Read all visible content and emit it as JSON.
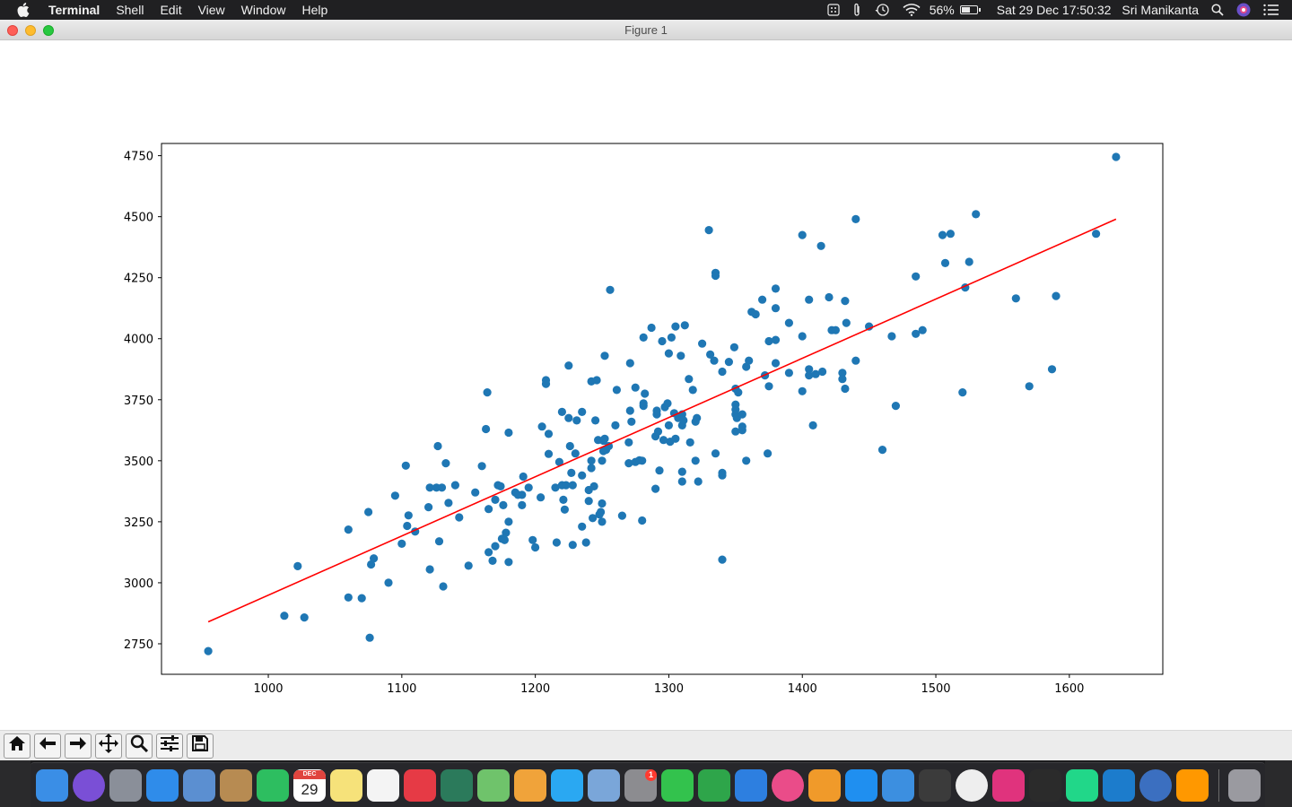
{
  "menubar": {
    "app_name": "Terminal",
    "items": [
      "Shell",
      "Edit",
      "View",
      "Window",
      "Help"
    ],
    "battery": "56%",
    "datetime": "Sat 29 Dec  17:50:32",
    "user": "Sri Manikanta"
  },
  "window": {
    "title": "Figure 1"
  },
  "chart_data": {
    "type": "scatter",
    "title": "",
    "xlabel": "",
    "ylabel": "",
    "xlim": [
      920,
      1670
    ],
    "ylim": [
      2625,
      4800
    ],
    "xticks": [
      1000,
      1100,
      1200,
      1300,
      1400,
      1500,
      1600
    ],
    "yticks": [
      2750,
      3000,
      3250,
      3500,
      3750,
      4000,
      4250,
      4500,
      4750
    ],
    "grid": false,
    "colors": {
      "points": "#1f77b4",
      "line": "#ff0000"
    },
    "series": [
      {
        "kind": "scatter",
        "points": [
          [
            955,
            2720
          ],
          [
            1012,
            2865
          ],
          [
            1022,
            3068
          ],
          [
            1027,
            2858
          ],
          [
            1060,
            3218
          ],
          [
            1060,
            2940
          ],
          [
            1070,
            2937
          ],
          [
            1075,
            3290
          ],
          [
            1076,
            2775
          ],
          [
            1077,
            3075
          ],
          [
            1079,
            3100
          ],
          [
            1090,
            3000
          ],
          [
            1095,
            3357
          ],
          [
            1100,
            3160
          ],
          [
            1103,
            3480
          ],
          [
            1104,
            3233
          ],
          [
            1105,
            3276
          ],
          [
            1110,
            3210
          ],
          [
            1120,
            3310
          ],
          [
            1121,
            3390
          ],
          [
            1121,
            3055
          ],
          [
            1126,
            3390
          ],
          [
            1127,
            3560
          ],
          [
            1128,
            3170
          ],
          [
            1130,
            3390
          ],
          [
            1131,
            2985
          ],
          [
            1133,
            3490
          ],
          [
            1135,
            3327
          ],
          [
            1140,
            3400
          ],
          [
            1143,
            3268
          ],
          [
            1150,
            3070
          ],
          [
            1155,
            3370
          ],
          [
            1160,
            3478
          ],
          [
            1163,
            3630
          ],
          [
            1164,
            3780
          ],
          [
            1165,
            3302
          ],
          [
            1165,
            3125
          ],
          [
            1168,
            3090
          ],
          [
            1170,
            3340
          ],
          [
            1170,
            3150
          ],
          [
            1172,
            3400
          ],
          [
            1174,
            3395
          ],
          [
            1175,
            3180
          ],
          [
            1176,
            3318
          ],
          [
            1177,
            3175
          ],
          [
            1178,
            3205
          ],
          [
            1180,
            3250
          ],
          [
            1180,
            3615
          ],
          [
            1180,
            3085
          ],
          [
            1185,
            3370
          ],
          [
            1187,
            3360
          ],
          [
            1190,
            3360
          ],
          [
            1190,
            3318
          ],
          [
            1191,
            3435
          ],
          [
            1195,
            3390
          ],
          [
            1198,
            3175
          ],
          [
            1200,
            3145
          ],
          [
            1204,
            3350
          ],
          [
            1205,
            3640
          ],
          [
            1208,
            3815
          ],
          [
            1208,
            3830
          ],
          [
            1210,
            3610
          ],
          [
            1210,
            3528
          ],
          [
            1215,
            3390
          ],
          [
            1216,
            3165
          ],
          [
            1218,
            3495
          ],
          [
            1220,
            3700
          ],
          [
            1220,
            3400
          ],
          [
            1221,
            3340
          ],
          [
            1222,
            3300
          ],
          [
            1223,
            3400
          ],
          [
            1225,
            3675
          ],
          [
            1225,
            3890
          ],
          [
            1226,
            3560
          ],
          [
            1227,
            3450
          ],
          [
            1228,
            3400
          ],
          [
            1228,
            3155
          ],
          [
            1230,
            3530
          ],
          [
            1231,
            3665
          ],
          [
            1235,
            3230
          ],
          [
            1235,
            3440
          ],
          [
            1235,
            3700
          ],
          [
            1238,
            3165
          ],
          [
            1240,
            3380
          ],
          [
            1240,
            3335
          ],
          [
            1242,
            3500
          ],
          [
            1242,
            3825
          ],
          [
            1242,
            3470
          ],
          [
            1243,
            3265
          ],
          [
            1244,
            3395
          ],
          [
            1245,
            3665
          ],
          [
            1246,
            3830
          ],
          [
            1247,
            3585
          ],
          [
            1248,
            3280
          ],
          [
            1249,
            3290
          ],
          [
            1250,
            3325
          ],
          [
            1250,
            3500
          ],
          [
            1250,
            3250
          ],
          [
            1251,
            3540
          ],
          [
            1251,
            3582
          ],
          [
            1252,
            3590
          ],
          [
            1252,
            3930
          ],
          [
            1253,
            3545
          ],
          [
            1255,
            3560
          ],
          [
            1256,
            4200
          ],
          [
            1260,
            3645
          ],
          [
            1261,
            3790
          ],
          [
            1265,
            3275
          ],
          [
            1270,
            3490
          ],
          [
            1270,
            3575
          ],
          [
            1271,
            3900
          ],
          [
            1271,
            3705
          ],
          [
            1272,
            3660
          ],
          [
            1275,
            3495
          ],
          [
            1275,
            3800
          ],
          [
            1278,
            3502
          ],
          [
            1280,
            3255
          ],
          [
            1280,
            3500
          ],
          [
            1281,
            4005
          ],
          [
            1281,
            3725
          ],
          [
            1281,
            3735
          ],
          [
            1282,
            3775
          ],
          [
            1287,
            4045
          ],
          [
            1290,
            3600
          ],
          [
            1290,
            3385
          ],
          [
            1291,
            3690
          ],
          [
            1291,
            3705
          ],
          [
            1292,
            3620
          ],
          [
            1293,
            3460
          ],
          [
            1295,
            3990
          ],
          [
            1296,
            3585
          ],
          [
            1297,
            3720
          ],
          [
            1299,
            3735
          ],
          [
            1300,
            3940
          ],
          [
            1300,
            3645
          ],
          [
            1301,
            3578
          ],
          [
            1302,
            4005
          ],
          [
            1304,
            3695
          ],
          [
            1305,
            4050
          ],
          [
            1305,
            3590
          ],
          [
            1307,
            3675
          ],
          [
            1309,
            3930
          ],
          [
            1310,
            3645
          ],
          [
            1310,
            3455
          ],
          [
            1310,
            3415
          ],
          [
            1310,
            3690
          ],
          [
            1311,
            3665
          ],
          [
            1312,
            4055
          ],
          [
            1315,
            3835
          ],
          [
            1316,
            3575
          ],
          [
            1318,
            3790
          ],
          [
            1320,
            3660
          ],
          [
            1320,
            3500
          ],
          [
            1321,
            3675
          ],
          [
            1322,
            3415
          ],
          [
            1325,
            3980
          ],
          [
            1330,
            4445
          ],
          [
            1331,
            3935
          ],
          [
            1334,
            3910
          ],
          [
            1335,
            4270
          ],
          [
            1335,
            4258
          ],
          [
            1335,
            3530
          ],
          [
            1340,
            3450
          ],
          [
            1340,
            3440
          ],
          [
            1340,
            3865
          ],
          [
            1340,
            3095
          ],
          [
            1345,
            3905
          ],
          [
            1349,
            3965
          ],
          [
            1350,
            3795
          ],
          [
            1350,
            3730
          ],
          [
            1350,
            3710
          ],
          [
            1350,
            3620
          ],
          [
            1350,
            3690
          ],
          [
            1351,
            3675
          ],
          [
            1352,
            3780
          ],
          [
            1355,
            3625
          ],
          [
            1355,
            3640
          ],
          [
            1355,
            3690
          ],
          [
            1358,
            3885
          ],
          [
            1358,
            3500
          ],
          [
            1360,
            3910
          ],
          [
            1362,
            4110
          ],
          [
            1365,
            4100
          ],
          [
            1370,
            4160
          ],
          [
            1372,
            3850
          ],
          [
            1374,
            3530
          ],
          [
            1375,
            3805
          ],
          [
            1375,
            3990
          ],
          [
            1380,
            4205
          ],
          [
            1380,
            4125
          ],
          [
            1380,
            3995
          ],
          [
            1380,
            3900
          ],
          [
            1390,
            4065
          ],
          [
            1390,
            3860
          ],
          [
            1400,
            4425
          ],
          [
            1400,
            3785
          ],
          [
            1400,
            4010
          ],
          [
            1405,
            4160
          ],
          [
            1405,
            3875
          ],
          [
            1405,
            3850
          ],
          [
            1408,
            3645
          ],
          [
            1410,
            3855
          ],
          [
            1414,
            4380
          ],
          [
            1415,
            3865
          ],
          [
            1420,
            4170
          ],
          [
            1422,
            4035
          ],
          [
            1425,
            4035
          ],
          [
            1430,
            3860
          ],
          [
            1430,
            3835
          ],
          [
            1432,
            4155
          ],
          [
            1432,
            3795
          ],
          [
            1433,
            4065
          ],
          [
            1440,
            4490
          ],
          [
            1440,
            3910
          ],
          [
            1450,
            4050
          ],
          [
            1460,
            3545
          ],
          [
            1467,
            4010
          ],
          [
            1470,
            3725
          ],
          [
            1485,
            4255
          ],
          [
            1485,
            4020
          ],
          [
            1490,
            4035
          ],
          [
            1505,
            4425
          ],
          [
            1507,
            4310
          ],
          [
            1511,
            4430
          ],
          [
            1520,
            3780
          ],
          [
            1522,
            4210
          ],
          [
            1525,
            4315
          ],
          [
            1530,
            4510
          ],
          [
            1560,
            4165
          ],
          [
            1570,
            3805
          ],
          [
            1587,
            3875
          ],
          [
            1590,
            4175
          ],
          [
            1620,
            4430
          ],
          [
            1635,
            4745
          ]
        ]
      },
      {
        "kind": "line",
        "points": [
          [
            955,
            2840
          ],
          [
            1635,
            4490
          ]
        ]
      }
    ]
  },
  "toolbar": {
    "buttons": [
      "home-icon",
      "back-arrow-icon",
      "forward-arrow-icon",
      "pan-icon",
      "zoom-icon",
      "configure-subplots-icon",
      "save-icon"
    ]
  },
  "dock": {
    "calendar": {
      "month": "DEC",
      "day": "29"
    },
    "system_prefs_badge": "1",
    "apps": [
      {
        "name": "finder",
        "color": "#3a8ee6"
      },
      {
        "name": "siri",
        "color": "#7a4fd6"
      },
      {
        "name": "launchpad",
        "color": "#8a8f99"
      },
      {
        "name": "safari",
        "color": "#2f8cea"
      },
      {
        "name": "mail-stamp",
        "color": "#5b8fd1"
      },
      {
        "name": "contacts",
        "color": "#b78b52"
      },
      {
        "name": "evernote",
        "color": "#2dbe60"
      },
      {
        "name": "calendar",
        "color": "#ffffff"
      },
      {
        "name": "notes",
        "color": "#f6e27a"
      },
      {
        "name": "reminders",
        "color": "#f4f4f4"
      },
      {
        "name": "pocket",
        "color": "#e63a45"
      },
      {
        "name": "shield",
        "color": "#2b7a5b"
      },
      {
        "name": "maps",
        "color": "#6fc36b"
      },
      {
        "name": "photos",
        "color": "#f0a33a"
      },
      {
        "name": "messages",
        "color": "#2aa8f2"
      },
      {
        "name": "preview",
        "color": "#7aa6d9"
      },
      {
        "name": "system-preferences",
        "color": "#8c8c90"
      },
      {
        "name": "facetime",
        "color": "#33c24d"
      },
      {
        "name": "numbers",
        "color": "#2ea54a"
      },
      {
        "name": "keynote",
        "color": "#2d7fe0"
      },
      {
        "name": "itunes",
        "color": "#ea4c89"
      },
      {
        "name": "books",
        "color": "#f09a2a"
      },
      {
        "name": "app-store",
        "color": "#1f8ff0"
      },
      {
        "name": "xcode",
        "color": "#3c8fe0"
      },
      {
        "name": "flux",
        "color": "#3b3b3b"
      },
      {
        "name": "chrome",
        "color": "#eeeeee"
      },
      {
        "name": "intellij",
        "color": "#e0337d"
      },
      {
        "name": "terminal",
        "color": "#2b2b2b"
      },
      {
        "name": "pycharm",
        "color": "#21d789"
      },
      {
        "name": "vscode",
        "color": "#1c7ccc"
      },
      {
        "name": "r",
        "color": "#3b6fc0"
      },
      {
        "name": "sublime",
        "color": "#ff9800"
      },
      {
        "name": "trash",
        "color": "#9a9aa0"
      }
    ]
  }
}
